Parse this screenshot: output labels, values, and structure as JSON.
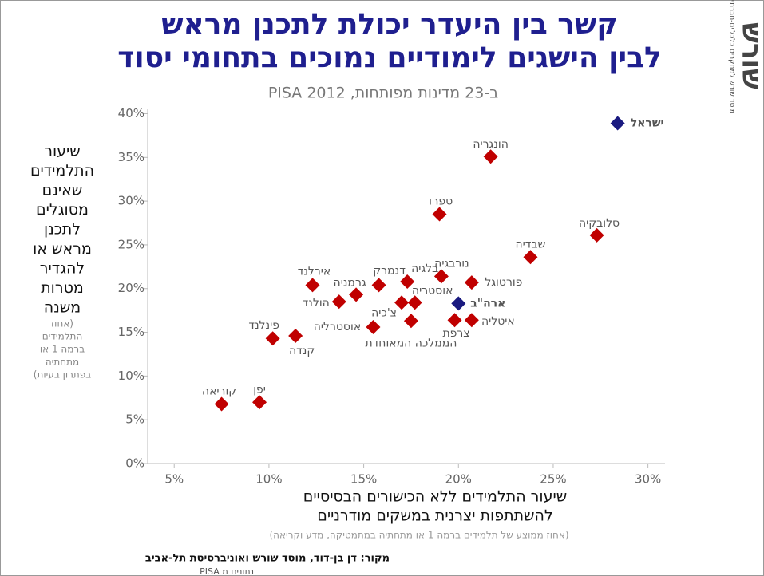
{
  "chart_data": {
    "type": "scatter",
    "title": [
      "קשר בין היעדר יכולת לתכנן מראש",
      "לבין הישגים לימודיים נמוכים בתחומי יסוד"
    ],
    "subtitle": "ב-23 מדינות מפותחות, PISA 2012",
    "y_label": [
      "שיעור",
      "התלמידים",
      "שאינם",
      "מסוגלים",
      "לתכנן",
      "מראש או",
      "להגדיר",
      "מטרות",
      "משנה"
    ],
    "y_label_note": [
      "(אחוז",
      "התלמידים",
      "ברמה 1 או",
      "מתחתיה",
      "בפתרון בעיות)"
    ],
    "x_label": [
      "שיעור התלמידים ללא הכישורים הבסיסיים",
      "להשתתפות יצרנית במשקים מודרניים"
    ],
    "x_label_note": "(אחוז ממוצע של תלמידים ברמה 1 או מתחתיה במתמטיקה, מדע וקריאה)",
    "source": "מקור: דן בן-דוד, מוסד שורש ואוניברסיטת תל-אביב",
    "source_note": "נתונים מ PISA",
    "logo": "שורש",
    "logo_note": "מוסד שורש למחקרים כלכליים-חברתיים",
    "xlim": [
      3.6,
      30.9
    ],
    "ylim": [
      0,
      40.5
    ],
    "xticks": [
      {
        "value": 5,
        "label": "5%"
      },
      {
        "value": 10,
        "label": "10%"
      },
      {
        "value": 15,
        "label": "15%"
      },
      {
        "value": 20,
        "label": "20%"
      },
      {
        "value": 25,
        "label": "25%"
      },
      {
        "value": 30,
        "label": "30%"
      }
    ],
    "yticks": [
      {
        "value": 0,
        "label": "0%"
      },
      {
        "value": 5,
        "label": "5%"
      },
      {
        "value": 10,
        "label": "10%"
      },
      {
        "value": 15,
        "label": "15%"
      },
      {
        "value": 20,
        "label": "20%"
      },
      {
        "value": 25,
        "label": "25%"
      },
      {
        "value": 30,
        "label": "30%"
      },
      {
        "value": 35,
        "label": "35%"
      },
      {
        "value": 40,
        "label": "40%"
      }
    ],
    "points": [
      {
        "label": "ישראל",
        "x": 28.4,
        "y": 38.9,
        "color": "#1a1a80"
      },
      {
        "label": "הונגריה",
        "x": 21.7,
        "y": 35.1,
        "color": "#c00000"
      },
      {
        "label": "ספרד",
        "x": 19.0,
        "y": 28.5,
        "color": "#c00000"
      },
      {
        "label": "סלובקיה",
        "x": 27.3,
        "y": 26.1,
        "color": "#c00000"
      },
      {
        "label": "שבדיה",
        "x": 23.8,
        "y": 23.6,
        "color": "#c00000"
      },
      {
        "label": "נורבגיה",
        "x": 19.1,
        "y": 21.4,
        "color": "#c00000"
      },
      {
        "label": "בלגיה",
        "x": 17.3,
        "y": 20.8,
        "color": "#c00000"
      },
      {
        "label": "פורטוגל",
        "x": 20.7,
        "y": 20.7,
        "color": "#c00000"
      },
      {
        "label": "דנמרק",
        "x": 15.8,
        "y": 20.4,
        "color": "#c00000"
      },
      {
        "label": "אירלנד",
        "x": 12.3,
        "y": 20.4,
        "color": "#c00000"
      },
      {
        "label": "גרמניה",
        "x": 14.6,
        "y": 19.3,
        "color": "#c00000"
      },
      {
        "label": "הולנד",
        "x": 13.7,
        "y": 18.5,
        "color": "#c00000"
      },
      {
        "label": "אוסטריה",
        "x": 17.7,
        "y": 18.4,
        "color": "#c00000"
      },
      {
        "label": "צ'כיה",
        "x": 17.0,
        "y": 18.4,
        "color": "#c00000"
      },
      {
        "label": "ארה\"ב",
        "x": 20.0,
        "y": 18.3,
        "color": "#1a1a80"
      },
      {
        "label": "הממלכה המאוחדת",
        "x": 17.5,
        "y": 16.3,
        "color": "#c00000"
      },
      {
        "label": "צרפת",
        "x": 19.8,
        "y": 16.4,
        "color": "#c00000"
      },
      {
        "label": "איטליה",
        "x": 20.7,
        "y": 16.4,
        "color": "#c00000"
      },
      {
        "label": "אוסטרליה",
        "x": 15.5,
        "y": 15.6,
        "color": "#c00000"
      },
      {
        "label": "קנדה",
        "x": 11.4,
        "y": 14.6,
        "color": "#c00000"
      },
      {
        "label": "פינלנד",
        "x": 10.2,
        "y": 14.3,
        "color": "#c00000"
      },
      {
        "label": "יפן",
        "x": 9.5,
        "y": 7.0,
        "color": "#c00000"
      },
      {
        "label": "קוריאה",
        "x": 7.5,
        "y": 6.8,
        "color": "#c00000"
      }
    ]
  }
}
